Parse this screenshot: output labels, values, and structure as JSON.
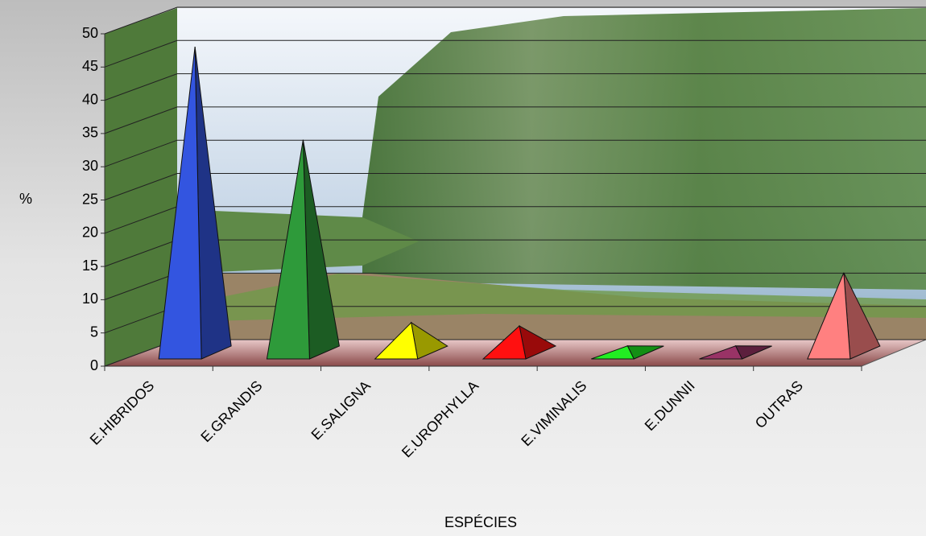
{
  "chart_data": {
    "type": "pyramid",
    "x_label": "ESPÉCIES",
    "y_label": "%",
    "categories": [
      "E.HIBRIDOS",
      "E.GRANDIS",
      "E.SALIGNA",
      "E.UROPHYLLA",
      "E.VIMINALIS",
      "E.DUNNII",
      "OUTRAS"
    ],
    "values": [
      46,
      32,
      4.5,
      4,
      1,
      1,
      12
    ],
    "colors": [
      "#3355e0",
      "#2e9a3a",
      "#ffff00",
      "#ff1010",
      "#22ee22",
      "#993366",
      "#ff8080"
    ],
    "ylim": [
      0,
      50
    ],
    "yticks": [
      0,
      5,
      10,
      15,
      20,
      25,
      30,
      35,
      40,
      45,
      50
    ],
    "grid": true
  }
}
